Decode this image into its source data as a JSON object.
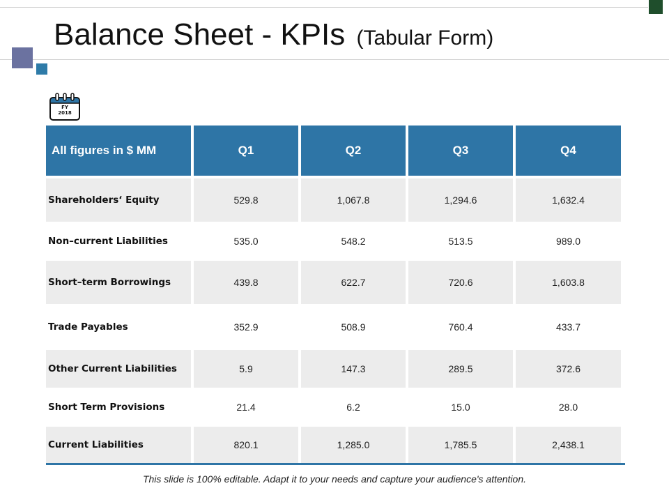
{
  "slide": {
    "title": "Balance Sheet - KPIs",
    "subtitle": "(Tabular Form)",
    "calendar_icon": {
      "line1": "FY",
      "line2": "2018"
    },
    "footer": "This slide is 100% editable. Adapt it to your needs and capture your audience's attention."
  },
  "colors": {
    "header_bg": "#2e75a6",
    "row_shade": "#ececec",
    "accent_dark_green": "#1f4e2c",
    "accent_slate": "#6b72a0",
    "accent_blue": "#2e7ba8"
  },
  "table": {
    "headers": [
      "All figures in $ MM",
      "Q1",
      "Q2",
      "Q3",
      "Q4"
    ],
    "rows": [
      {
        "label": "Shareholders‘ Equity",
        "values": [
          "529.8",
          "1,067.8",
          "1,294.6",
          "1,632.4"
        ]
      },
      {
        "label": "Non–current Liabilities",
        "values": [
          "535.0",
          "548.2",
          "513.5",
          "989.0"
        ]
      },
      {
        "label": "Short–term Borrowings",
        "values": [
          "439.8",
          "622.7",
          "720.6",
          "1,603.8"
        ]
      },
      {
        "label": "Trade Payables",
        "values": [
          "352.9",
          "508.9",
          "760.4",
          "433.7"
        ]
      },
      {
        "label": "Other Current Liabilities",
        "values": [
          "5.9",
          "147.3",
          "289.5",
          "372.6"
        ]
      },
      {
        "label": "Short Term Provisions",
        "values": [
          "21.4",
          "6.2",
          "15.0",
          "28.0"
        ]
      },
      {
        "label": "Current Liabilities",
        "values": [
          "820.1",
          "1,285.0",
          "1,785.5",
          "2,438.1"
        ]
      }
    ]
  }
}
